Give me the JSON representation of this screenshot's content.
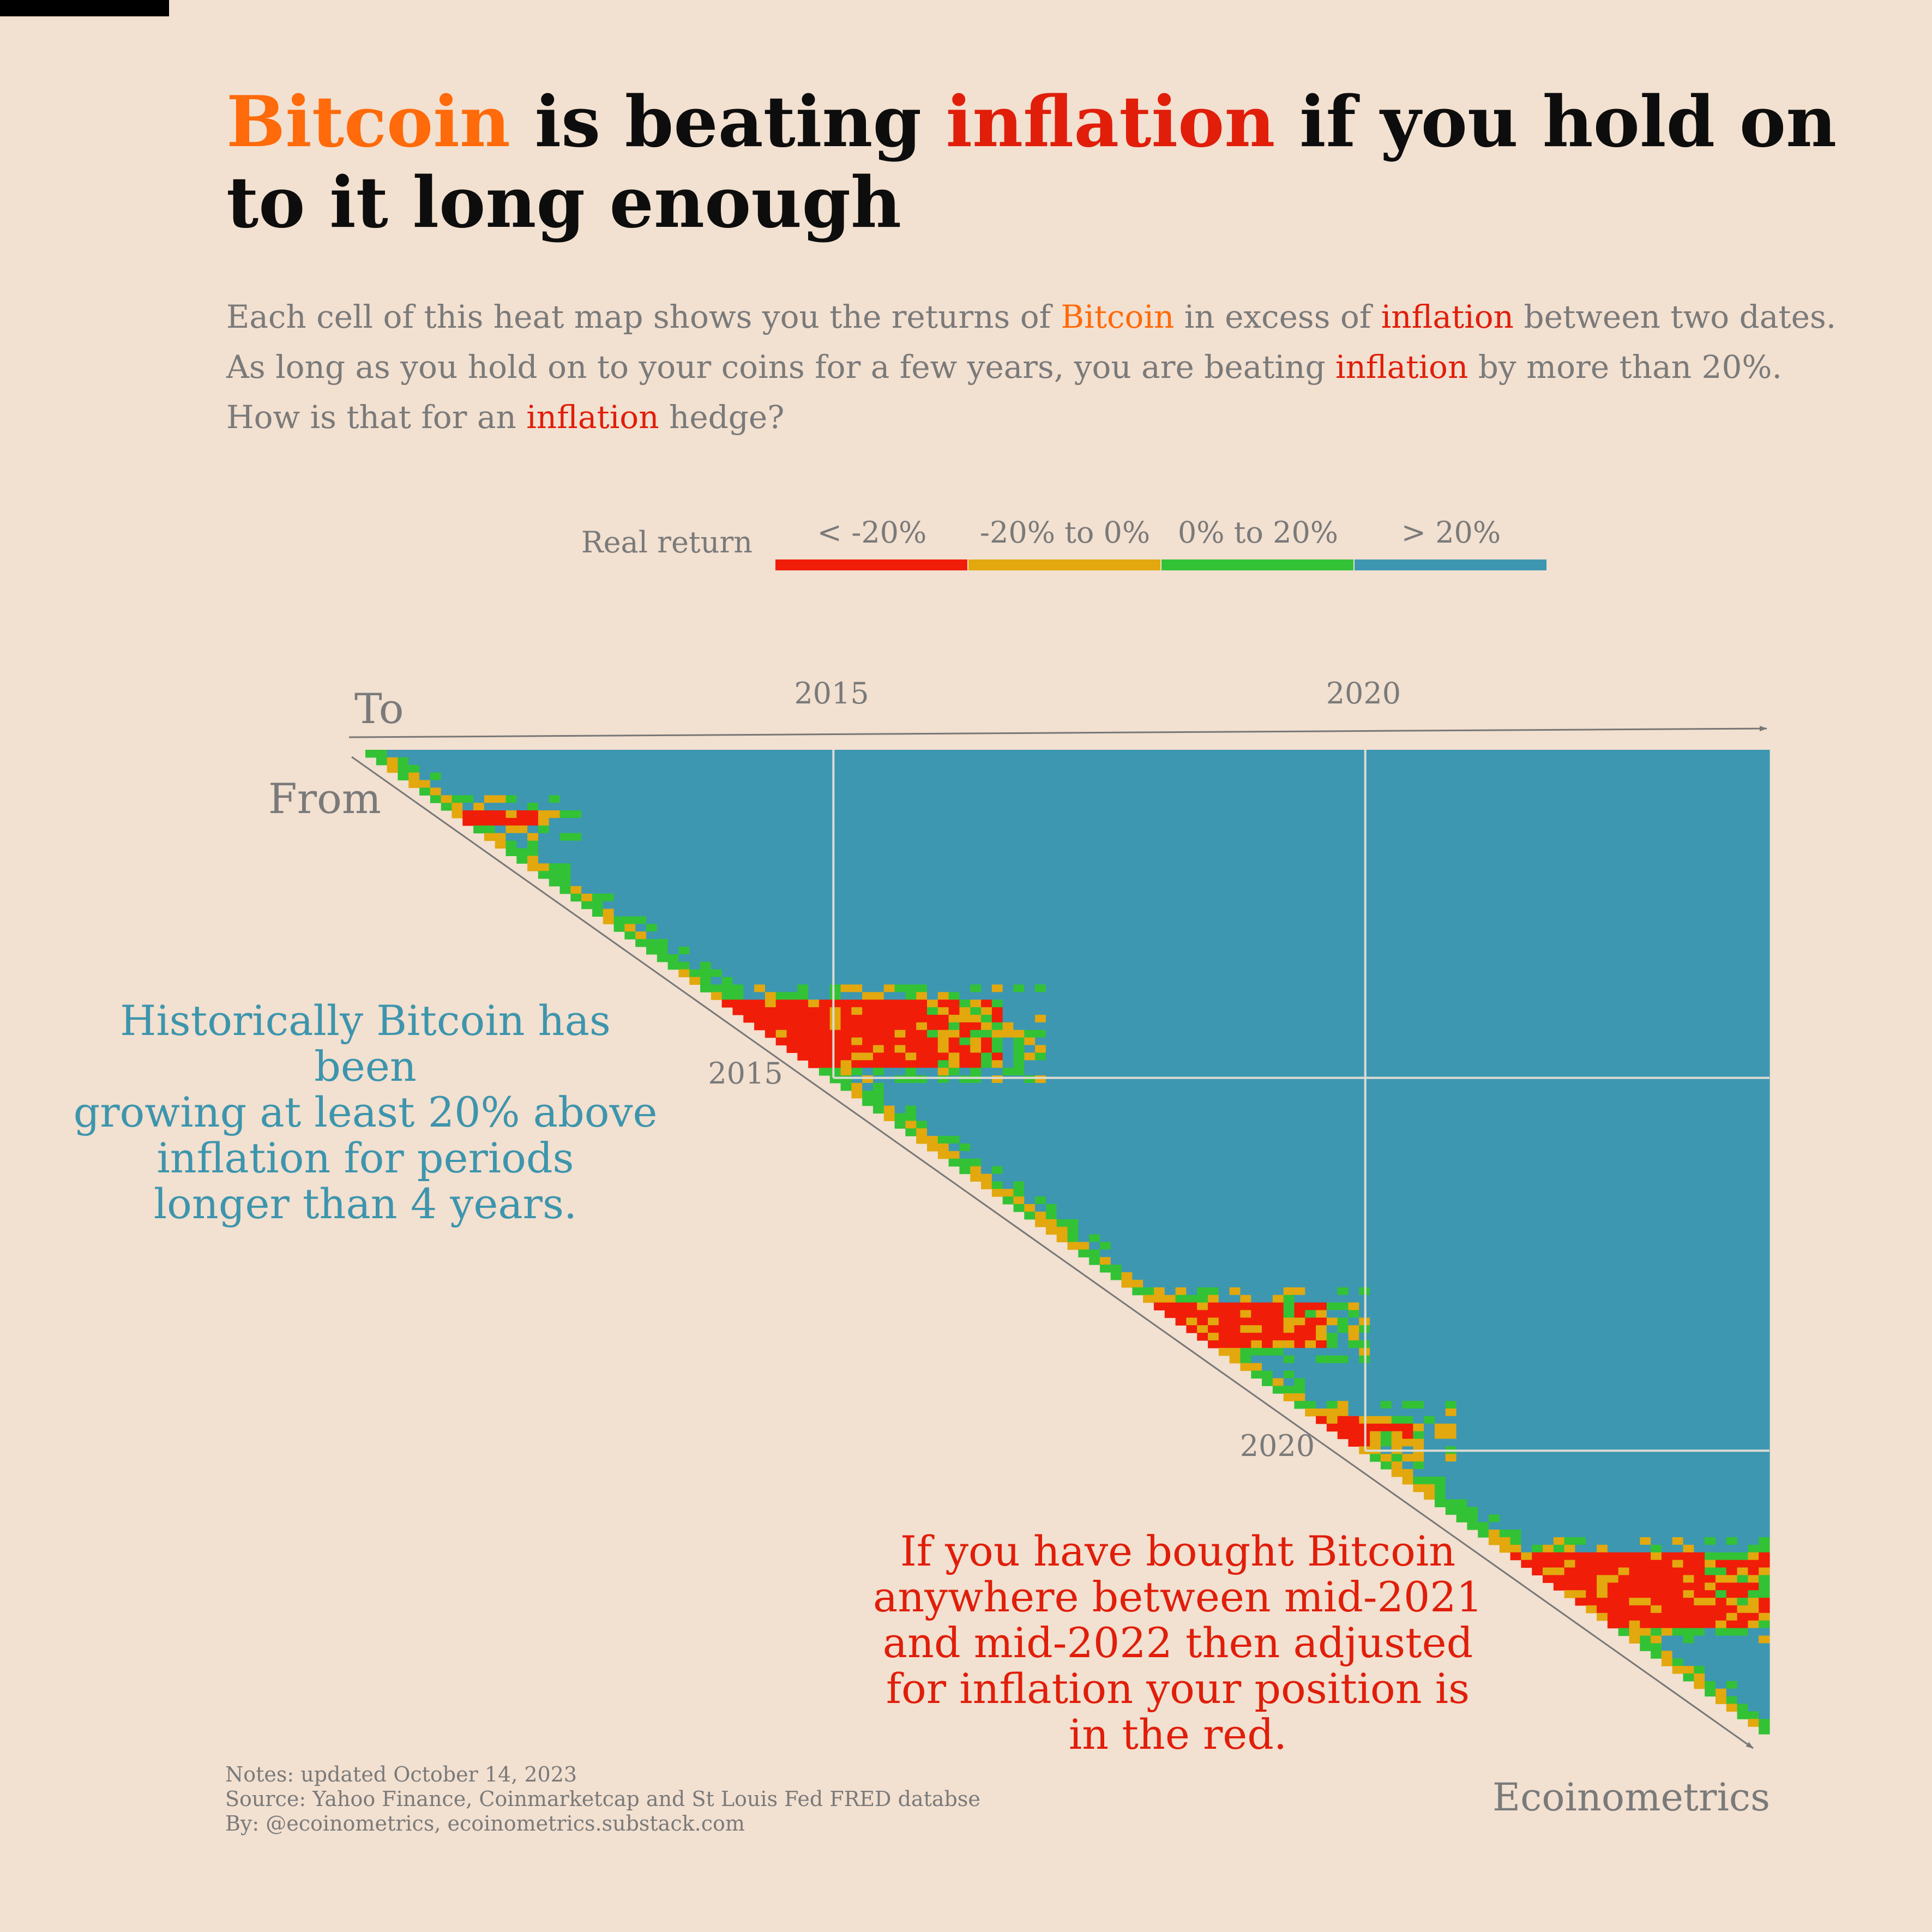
{
  "title": {
    "part1": "Bitcoin",
    "part2": " is beating ",
    "part3": "inflation",
    "part4": " if you hold on to it long enough"
  },
  "subtitle": {
    "l1a": "Each cell of this heat map shows you the returns of ",
    "l1b": "Bitcoin",
    "l1c": " in excess of ",
    "l1d": "inflation",
    "l1e": " between two dates.",
    "l2a": "As long as you hold on to your coins for a few years, you are beating ",
    "l2b": "inflation",
    "l2c": " by more than 20%.",
    "l3a": "How is that for an ",
    "l3b": "inflation",
    "l3c": " hedge?"
  },
  "colors": {
    "background": "#f2e0d0",
    "bitcoin": "#ff6a0a",
    "inflation": "#e01e0a",
    "lt_neg20": "#f01d08",
    "neg20_0": "#e2a80e",
    "pos0_20": "#33c235",
    "gt20": "#3d97b1",
    "axis": "#777777",
    "grid": "#dcdcd2"
  },
  "chart_data": {
    "type": "heatmap",
    "legend_title": "Real return",
    "legend": [
      {
        "label": "< -20%",
        "color": "#f01d08"
      },
      {
        "label": "-20% to 0%",
        "color": "#e2a80e"
      },
      {
        "label": "0% to 20%",
        "color": "#33c235"
      },
      {
        "label": "> 20%",
        "color": "#3d97b1"
      }
    ],
    "x_axis_label": "To",
    "y_axis_label": "From",
    "x_ticks": [
      "2015",
      "2020"
    ],
    "y_ticks": [
      "2015",
      "2020"
    ],
    "x_range": [
      2010.6,
      2023.8
    ],
    "y_range": [
      2010.6,
      2023.8
    ],
    "scale": "matrix of holding periods (from date → to date), only to ≥ from shown",
    "regions": [
      {
        "category": "< -20%",
        "from": [
          2011.4,
          2011.6
        ],
        "to": [
          2011.5,
          2012.2
        ]
      },
      {
        "category": "< -20%",
        "from": [
          2013.9,
          2014.9
        ],
        "to": [
          2013.9,
          2016.6
        ]
      },
      {
        "category": "< -20%",
        "from": [
          2018.0,
          2018.6
        ],
        "to": [
          2018.0,
          2019.6
        ]
      },
      {
        "category": "< -20%",
        "from": [
          2019.5,
          2019.9
        ],
        "to": [
          2019.5,
          2020.4
        ]
      },
      {
        "category": "< -20%",
        "from": [
          2021.4,
          2022.4
        ],
        "to": [
          2021.4,
          2023.8
        ]
      }
    ],
    "grid": true
  },
  "annotations": {
    "blue": "Historically Bitcoin has been growing at least 20% above inflation for periods longer than 4 years.",
    "blue_lines": [
      "Historically Bitcoin has been",
      "growing at least 20% above",
      "inflation for periods",
      "longer than 4 years."
    ],
    "red_lines": [
      "If you have bought Bitcoin",
      "anywhere between mid-2021",
      "and mid-2022 then adjusted",
      "for inflation your position is",
      "in the red."
    ]
  },
  "notes": [
    "Notes: updated October 14, 2023",
    "Source: Yahoo Finance, Coinmarketcap and St Louis Fed FRED databse",
    "By: @ecoinometrics, ecoinometrics.substack.com"
  ],
  "brand": "Ecoinometrics"
}
